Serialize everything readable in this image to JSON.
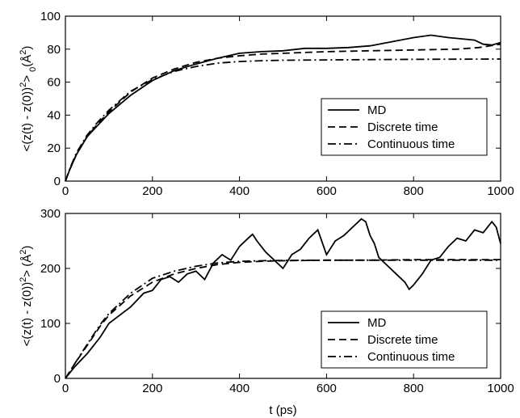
{
  "chart_data": [
    {
      "type": "line",
      "xlabel": "",
      "ylabel": "<(z(t) - z(0))",
      "ylabel_sup": "2",
      "ylabel_sub": "0",
      "ylabel_mid": "> ",
      "ylabel_unit": "(Å",
      "ylabel_unit_sup": "2",
      "ylabel_unit_close": ")",
      "xlim": [
        0,
        1000
      ],
      "ylim": [
        0,
        100
      ],
      "xticks": [
        0,
        200,
        400,
        600,
        800,
        1000
      ],
      "xtick_labels": [
        "0",
        "200",
        "400",
        "600",
        "800",
        "1000"
      ],
      "yticks": [
        0,
        20,
        40,
        60,
        80,
        100
      ],
      "ytick_labels": [
        "0",
        "20",
        "40",
        "60",
        "80",
        "100"
      ],
      "legend_position": "lower-right",
      "series": [
        {
          "name": "MD",
          "style": "solid",
          "x": [
            0,
            10,
            25,
            50,
            75,
            100,
            150,
            200,
            250,
            300,
            350,
            400,
            450,
            500,
            550,
            600,
            650,
            700,
            750,
            800,
            840,
            880,
            900,
            940,
            960,
            980,
            1000
          ],
          "y": [
            0,
            7,
            16,
            27,
            34,
            41,
            52,
            61,
            67,
            71,
            74.5,
            77.5,
            78.5,
            79,
            80.5,
            80.5,
            81,
            82,
            84.5,
            87,
            88.5,
            87,
            86.5,
            85.5,
            83,
            82.5,
            84
          ]
        },
        {
          "name": "Discrete time",
          "style": "dash",
          "x": [
            0,
            10,
            25,
            50,
            75,
            100,
            150,
            200,
            250,
            300,
            350,
            400,
            450,
            500,
            600,
            700,
            800,
            900,
            950,
            1000
          ],
          "y": [
            0,
            7,
            16,
            27,
            35,
            42,
            54,
            62.5,
            68,
            72,
            74.5,
            76,
            77,
            77.5,
            78.5,
            79,
            79.5,
            80,
            81,
            83
          ]
        },
        {
          "name": "Continuous time",
          "style": "dashdot",
          "x": [
            0,
            10,
            25,
            50,
            75,
            100,
            150,
            200,
            250,
            300,
            350,
            400,
            450,
            500,
            600,
            700,
            800,
            900,
            1000
          ],
          "y": [
            0,
            7.5,
            17,
            28,
            36,
            43,
            54.5,
            61.5,
            66.5,
            69.5,
            71.5,
            72.5,
            73,
            73.3,
            73.5,
            73.7,
            73.8,
            73.9,
            74
          ]
        }
      ]
    },
    {
      "type": "line",
      "xlabel": "t (ps)",
      "ylabel": "<(z(t) - z(0))",
      "ylabel_sup": "2",
      "ylabel_sub": "",
      "ylabel_mid": "> ",
      "ylabel_unit": "(Å",
      "ylabel_unit_sup": "2",
      "ylabel_unit_close": ")",
      "xlim": [
        0,
        1000
      ],
      "ylim": [
        0,
        300
      ],
      "xticks": [
        0,
        200,
        400,
        600,
        800,
        1000
      ],
      "xtick_labels": [
        "0",
        "200",
        "400",
        "600",
        "800",
        "1000"
      ],
      "yticks": [
        0,
        100,
        200,
        300
      ],
      "ytick_labels": [
        "0",
        "100",
        "200",
        "300"
      ],
      "legend_position": "lower-right",
      "series": [
        {
          "name": "MD",
          "style": "solid",
          "x": [
            0,
            20,
            50,
            80,
            100,
            120,
            150,
            180,
            200,
            220,
            240,
            260,
            280,
            300,
            320,
            340,
            360,
            380,
            400,
            420,
            430,
            440,
            460,
            480,
            500,
            520,
            540,
            560,
            580,
            600,
            620,
            640,
            660,
            680,
            690,
            700,
            710,
            720,
            740,
            760,
            780,
            790,
            800,
            820,
            840,
            860,
            880,
            900,
            920,
            940,
            960,
            980,
            990,
            1000
          ],
          "y": [
            0,
            20,
            45,
            75,
            100,
            112,
            130,
            155,
            160,
            180,
            185,
            175,
            190,
            195,
            180,
            210,
            225,
            215,
            240,
            255,
            262,
            250,
            230,
            215,
            200,
            225,
            235,
            255,
            270,
            225,
            250,
            260,
            275,
            290,
            285,
            260,
            245,
            220,
            205,
            190,
            175,
            162,
            170,
            190,
            215,
            220,
            240,
            255,
            250,
            270,
            265,
            285,
            275,
            245
          ]
        },
        {
          "name": "Discrete time",
          "style": "dash",
          "x": [
            0,
            20,
            50,
            80,
            100,
            150,
            200,
            250,
            300,
            350,
            400,
            450,
            500,
            600,
            700,
            800,
            900,
            1000
          ],
          "y": [
            0,
            25,
            60,
            95,
            115,
            150,
            175,
            190,
            200,
            207,
            211,
            213,
            214,
            215,
            215,
            216,
            216,
            216
          ]
        },
        {
          "name": "Continuous time",
          "style": "dashdot",
          "x": [
            0,
            20,
            50,
            80,
            100,
            150,
            200,
            250,
            300,
            350,
            400,
            450,
            500,
            600,
            700,
            800,
            900,
            1000
          ],
          "y": [
            0,
            25,
            62,
            98,
            118,
            155,
            182,
            195,
            204,
            210,
            213,
            214,
            214.5,
            215,
            215,
            215,
            215,
            215
          ]
        }
      ]
    }
  ]
}
